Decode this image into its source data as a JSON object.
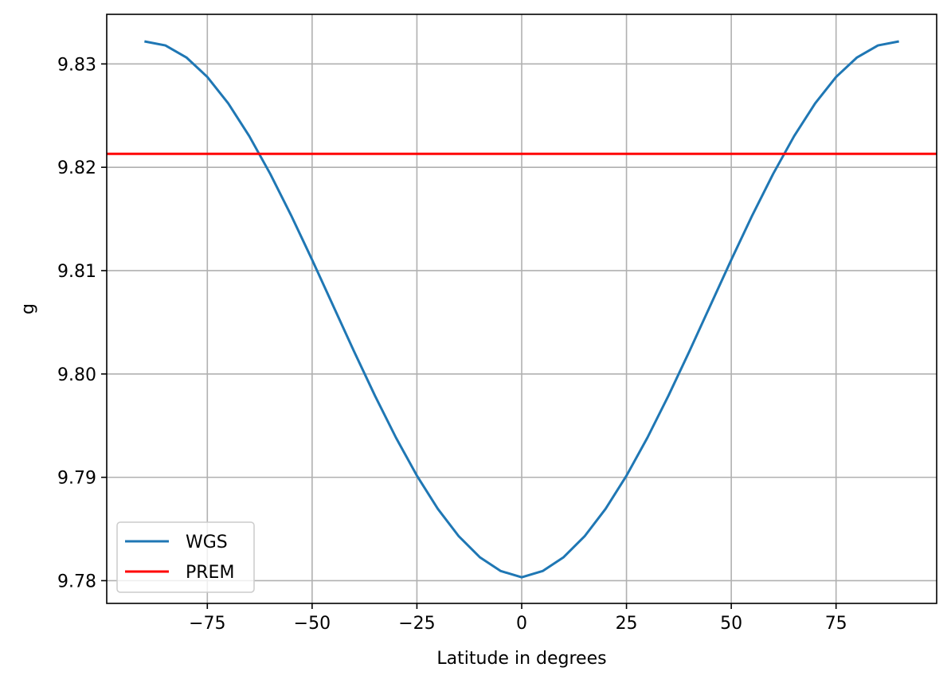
{
  "chart_data": {
    "type": "line",
    "title": "",
    "xlabel": "Latitude in degrees",
    "ylabel": "g",
    "xlim": [
      -99,
      99
    ],
    "ylim": [
      9.7778,
      9.8348
    ],
    "xticks": [
      -75,
      -50,
      -25,
      0,
      25,
      50,
      75
    ],
    "xtick_labels": [
      "−75",
      "−50",
      "−25",
      "0",
      "25",
      "50",
      "75"
    ],
    "yticks": [
      9.78,
      9.79,
      9.8,
      9.81,
      9.82,
      9.83
    ],
    "ytick_labels": [
      "9.78",
      "9.79",
      "9.80",
      "9.81",
      "9.82",
      "9.83"
    ],
    "grid": true,
    "legend_position": "lower left",
    "series": [
      {
        "name": "WGS",
        "color": "#1f77b4",
        "x": [
          -90,
          -85,
          -80,
          -75,
          -70,
          -65,
          -60,
          -55,
          -50,
          -45,
          -40,
          -35,
          -30,
          -25,
          -20,
          -15,
          -10,
          -5,
          0,
          5,
          10,
          15,
          20,
          25,
          30,
          35,
          40,
          45,
          50,
          55,
          60,
          65,
          70,
          75,
          80,
          85,
          90
        ],
        "y": [
          9.83218,
          9.83179,
          9.83063,
          9.82874,
          9.82618,
          9.82302,
          9.81937,
          9.81534,
          9.81105,
          9.80662,
          9.80219,
          9.79789,
          9.79384,
          9.79016,
          9.78694,
          9.78429,
          9.78227,
          9.78093,
          9.78033,
          9.78093,
          9.78227,
          9.78429,
          9.78694,
          9.79016,
          9.79384,
          9.79789,
          9.80219,
          9.80662,
          9.81105,
          9.81534,
          9.81937,
          9.82302,
          9.82618,
          9.82874,
          9.83063,
          9.83179,
          9.83218
        ]
      },
      {
        "name": "PREM",
        "color": "#ff0000",
        "type": "hline",
        "y": 9.8213
      }
    ]
  }
}
